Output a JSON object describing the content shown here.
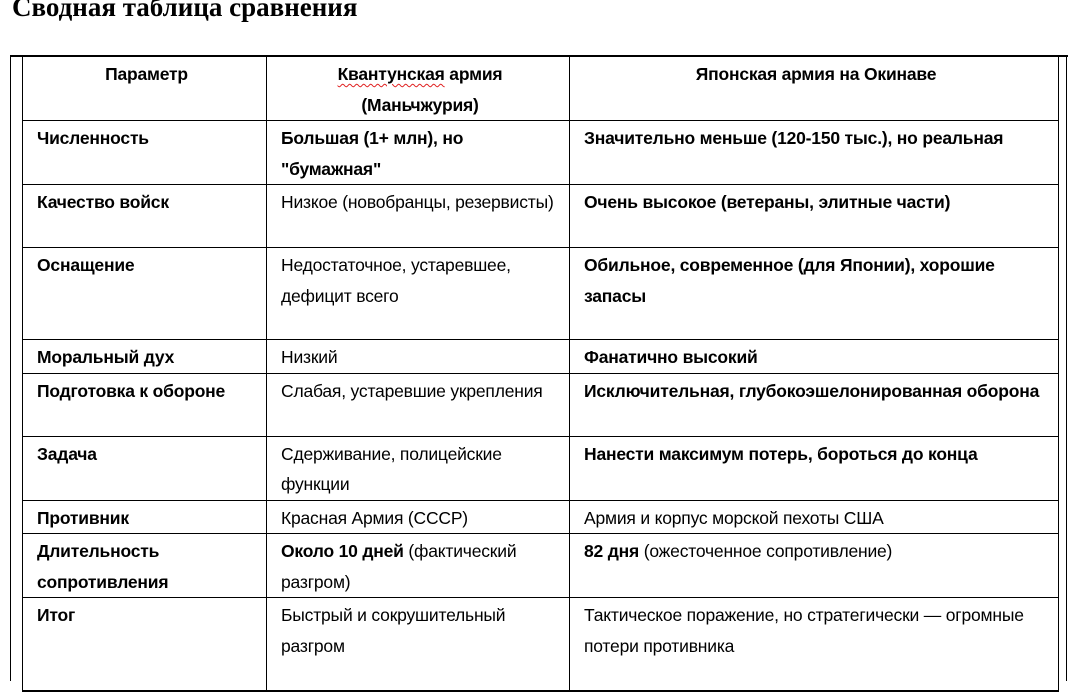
{
  "document": {
    "title": "Сводная таблица сравнения"
  },
  "table": {
    "headers": [
      [
        {
          "text": "Параметр"
        }
      ],
      [
        {
          "text": "Квантунская",
          "spell": true
        },
        {
          "text": " армия (Маньчжурия)"
        }
      ],
      [
        {
          "text": "Японская армия на Окинаве"
        }
      ]
    ],
    "rows": [
      [
        [
          {
            "text": "Численность",
            "bold": true
          }
        ],
        [
          {
            "text": "Большая (1+ млн), но \"бумажная\"",
            "bold": true
          }
        ],
        [
          {
            "text": "Значительно меньше (120-150 тыс.), но реальная",
            "bold": true
          }
        ]
      ],
      [
        [
          {
            "text": "Качество войск",
            "bold": true
          }
        ],
        [
          {
            "text": "Низкое (новобранцы, резервисты)"
          }
        ],
        [
          {
            "text": "Очень высокое (ветераны, элитные части)",
            "bold": true
          }
        ]
      ],
      [
        [
          {
            "text": "Оснащение",
            "bold": true
          }
        ],
        [
          {
            "text": "Недостаточное, устаревшее, дефицит всего"
          }
        ],
        [
          {
            "text": "Обильное, современное (для Японии), хорошие запасы",
            "bold": true
          }
        ]
      ],
      [
        [
          {
            "text": "Моральный дух",
            "bold": true
          }
        ],
        [
          {
            "text": "Низкий"
          }
        ],
        [
          {
            "text": "Фанатично высокий",
            "bold": true
          }
        ]
      ],
      [
        [
          {
            "text": "Подготовка к обороне",
            "bold": true
          }
        ],
        [
          {
            "text": "Слабая, устаревшие укрепления"
          }
        ],
        [
          {
            "text": "Исключительная, глубокоэшелонированная оборона",
            "bold": true
          }
        ]
      ],
      [
        [
          {
            "text": "Задача",
            "bold": true
          }
        ],
        [
          {
            "text": "Сдерживание, полицейские функции"
          }
        ],
        [
          {
            "text": "Нанести максимум потерь, бороться до конца",
            "bold": true
          }
        ]
      ],
      [
        [
          {
            "text": "Противник",
            "bold": true
          }
        ],
        [
          {
            "text": "Красная Армия (СССР)"
          }
        ],
        [
          {
            "text": "Армия и корпус морской пехоты США"
          }
        ]
      ],
      [
        [
          {
            "text": "Длительность сопротивления",
            "bold": true
          }
        ],
        [
          {
            "text": "Около 10 дней",
            "bold": true
          },
          {
            "text": " (фактический разгром)"
          }
        ],
        [
          {
            "text": "82 дня",
            "bold": true
          },
          {
            "text": " (ожесточенное сопротивление)"
          }
        ]
      ],
      [
        [
          {
            "text": "Итог",
            "bold": true
          }
        ],
        [
          {
            "text": "Быстрый и сокрушительный разгром"
          }
        ],
        [
          {
            "text": "Тактическое поражение, но стратегически — огромные потери противника"
          }
        ]
      ]
    ]
  }
}
